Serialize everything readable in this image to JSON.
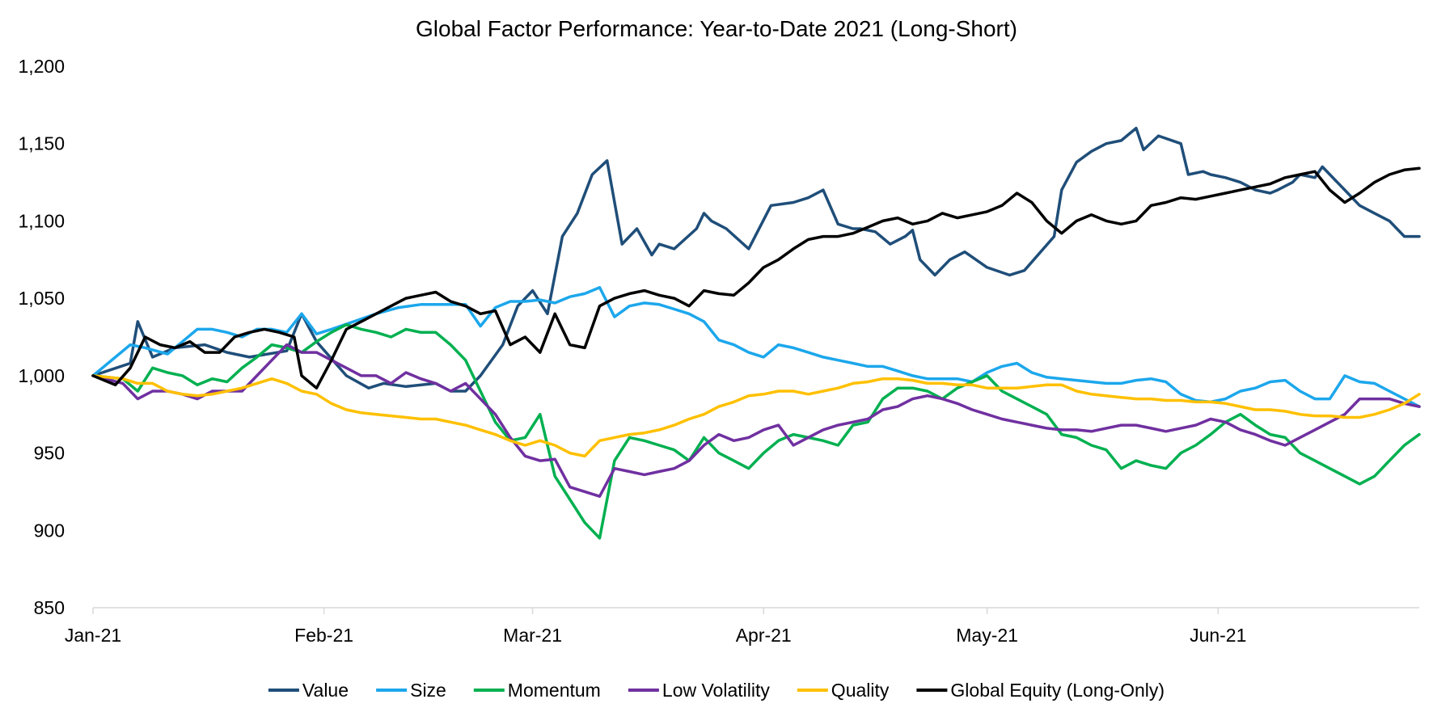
{
  "chart_data": {
    "type": "line",
    "title": "Global Factor Performance: Year-to-Date 2021 (Long-Short)",
    "xlabel": "",
    "ylabel": "",
    "ylim": [
      850,
      1200
    ],
    "yticks": [
      850,
      900,
      950,
      1000,
      1050,
      1100,
      1150,
      1200
    ],
    "ytick_labels": [
      "850",
      "900",
      "950",
      "1,000",
      "1,050",
      "1,100",
      "1,150",
      "1,200"
    ],
    "xlim": [
      0,
      178
    ],
    "xticks": [
      0,
      31,
      59,
      90,
      120,
      151
    ],
    "xtick_labels": [
      "Jan-21",
      "Feb-21",
      "Mar-21",
      "Apr-21",
      "May-21",
      "Jun-21"
    ],
    "grid": false,
    "legend_position": "bottom",
    "series": [
      {
        "name": "Value",
        "color": "#1F4E79",
        "x": [
          0,
          5,
          6,
          8,
          11,
          15,
          18,
          21,
          26,
          28,
          30,
          34,
          37,
          39,
          42,
          46,
          48,
          50,
          52,
          55,
          57,
          59,
          61,
          63,
          65,
          67,
          69,
          71,
          73,
          75,
          76,
          78,
          81,
          82,
          83,
          85,
          88,
          91,
          94,
          96,
          98,
          100,
          102,
          103,
          105,
          107,
          109,
          110,
          111,
          113,
          115,
          117,
          120,
          123,
          125,
          129,
          130,
          132,
          134,
          136,
          138,
          140,
          141,
          143,
          146,
          147,
          149,
          150,
          152,
          154,
          156,
          158,
          159,
          161,
          162,
          164,
          165,
          168,
          170,
          172,
          174,
          176,
          178
        ],
        "values": [
          1000,
          1008,
          1035,
          1012,
          1018,
          1020,
          1015,
          1012,
          1016,
          1040,
          1022,
          1000,
          992,
          995,
          993,
          995,
          990,
          990,
          1000,
          1020,
          1045,
          1055,
          1040,
          1090,
          1105,
          1130,
          1139,
          1085,
          1095,
          1078,
          1085,
          1082,
          1095,
          1105,
          1100,
          1095,
          1082,
          1110,
          1112,
          1115,
          1120,
          1098,
          1095,
          1095,
          1093,
          1085,
          1090,
          1094,
          1075,
          1065,
          1075,
          1080,
          1070,
          1065,
          1068,
          1090,
          1120,
          1138,
          1145,
          1150,
          1152,
          1160,
          1146,
          1155,
          1150,
          1130,
          1132,
          1130,
          1128,
          1125,
          1120,
          1118,
          1120,
          1125,
          1130,
          1128,
          1135,
          1120,
          1110,
          1105,
          1100,
          1090,
          1090
        ]
      },
      {
        "name": "Size",
        "color": "#1CA7EC",
        "x": [
          0,
          5,
          7,
          10,
          12,
          14,
          16,
          18,
          20,
          22,
          24,
          26,
          28,
          30,
          32,
          35,
          38,
          41,
          44,
          47,
          50,
          52,
          54,
          56,
          58,
          60,
          62,
          64,
          66,
          68,
          70,
          72,
          74,
          76,
          78,
          80,
          82,
          84,
          86,
          88,
          90,
          92,
          94,
          96,
          98,
          100,
          102,
          104,
          106,
          108,
          110,
          112,
          114,
          116,
          118,
          120,
          122,
          124,
          126,
          128,
          130,
          132,
          134,
          136,
          138,
          140,
          142,
          144,
          146,
          148,
          150,
          152,
          154,
          156,
          158,
          160,
          162,
          164,
          166,
          168,
          170,
          172,
          174,
          176,
          178
        ],
        "values": [
          1000,
          1020,
          1018,
          1014,
          1022,
          1030,
          1030,
          1028,
          1025,
          1030,
          1030,
          1028,
          1040,
          1027,
          1030,
          1035,
          1040,
          1044,
          1046,
          1046,
          1046,
          1032,
          1044,
          1048,
          1048,
          1049,
          1047,
          1051,
          1053,
          1057,
          1038,
          1045,
          1047,
          1046,
          1043,
          1040,
          1035,
          1023,
          1020,
          1015,
          1012,
          1020,
          1018,
          1015,
          1012,
          1010,
          1008,
          1006,
          1006,
          1003,
          1000,
          998,
          998,
          998,
          996,
          1002,
          1006,
          1008,
          1002,
          999,
          998,
          997,
          996,
          995,
          995,
          997,
          998,
          996,
          988,
          984,
          983,
          985,
          990,
          992,
          996,
          997,
          990,
          985,
          985,
          1000,
          996,
          995,
          990,
          985,
          980
        ]
      },
      {
        "name": "Momentum",
        "color": "#00B050",
        "x": [
          0,
          4,
          6,
          8,
          10,
          12,
          14,
          16,
          18,
          20,
          22,
          24,
          26,
          28,
          30,
          32,
          34,
          36,
          38,
          40,
          42,
          44,
          46,
          48,
          50,
          52,
          54,
          56,
          58,
          60,
          62,
          64,
          66,
          68,
          70,
          72,
          74,
          76,
          78,
          80,
          82,
          84,
          86,
          88,
          90,
          92,
          94,
          96,
          98,
          100,
          102,
          104,
          106,
          108,
          110,
          112,
          114,
          116,
          118,
          120,
          122,
          124,
          126,
          128,
          130,
          132,
          134,
          136,
          138,
          140,
          142,
          144,
          146,
          148,
          150,
          152,
          154,
          156,
          158,
          160,
          162,
          164,
          166,
          168,
          170,
          172,
          174,
          176,
          178
        ],
        "values": [
          1000,
          998,
          990,
          1005,
          1002,
          1000,
          994,
          998,
          996,
          1005,
          1012,
          1020,
          1018,
          1015,
          1022,
          1028,
          1033,
          1030,
          1028,
          1025,
          1030,
          1028,
          1028,
          1020,
          1010,
          990,
          970,
          958,
          960,
          975,
          935,
          920,
          905,
          895,
          945,
          960,
          958,
          955,
          952,
          945,
          960,
          950,
          945,
          940,
          950,
          958,
          962,
          960,
          958,
          955,
          968,
          970,
          985,
          992,
          992,
          990,
          985,
          992,
          996,
          1000,
          990,
          985,
          980,
          975,
          962,
          960,
          955,
          952,
          940,
          945,
          942,
          940,
          950,
          955,
          962,
          970,
          975,
          968,
          962,
          960,
          950,
          945,
          940,
          935,
          930,
          935,
          945,
          955,
          962
        ]
      },
      {
        "name": "Low Volatility",
        "color": "#7030A0",
        "x": [
          0,
          4,
          6,
          8,
          10,
          12,
          14,
          16,
          18,
          20,
          22,
          24,
          26,
          28,
          30,
          32,
          34,
          36,
          38,
          40,
          42,
          44,
          46,
          48,
          50,
          52,
          54,
          56,
          58,
          60,
          62,
          64,
          66,
          68,
          70,
          72,
          74,
          76,
          78,
          80,
          82,
          84,
          86,
          88,
          90,
          92,
          94,
          96,
          98,
          100,
          102,
          104,
          106,
          108,
          110,
          112,
          114,
          116,
          118,
          120,
          122,
          124,
          126,
          128,
          130,
          132,
          134,
          136,
          138,
          140,
          142,
          144,
          146,
          148,
          150,
          152,
          154,
          156,
          158,
          160,
          162,
          164,
          166,
          168,
          170,
          172,
          174,
          176,
          178
        ],
        "values": [
          1000,
          995,
          985,
          990,
          990,
          988,
          985,
          990,
          990,
          990,
          1000,
          1010,
          1020,
          1015,
          1015,
          1010,
          1005,
          1000,
          1000,
          995,
          1002,
          998,
          995,
          990,
          995,
          985,
          975,
          960,
          948,
          945,
          946,
          928,
          925,
          922,
          940,
          938,
          936,
          938,
          940,
          945,
          955,
          962,
          958,
          960,
          965,
          968,
          955,
          960,
          965,
          968,
          970,
          972,
          978,
          980,
          985,
          987,
          985,
          982,
          978,
          975,
          972,
          970,
          968,
          966,
          965,
          965,
          964,
          966,
          968,
          968,
          966,
          964,
          966,
          968,
          972,
          970,
          965,
          962,
          958,
          955,
          960,
          965,
          970,
          975,
          985,
          985,
          985,
          982,
          980
        ]
      },
      {
        "name": "Quality",
        "color": "#FFC000",
        "x": [
          0,
          4,
          6,
          8,
          10,
          12,
          14,
          16,
          18,
          20,
          22,
          24,
          26,
          28,
          30,
          32,
          34,
          36,
          38,
          40,
          42,
          44,
          46,
          48,
          50,
          52,
          54,
          56,
          58,
          60,
          62,
          64,
          66,
          68,
          70,
          72,
          74,
          76,
          78,
          80,
          82,
          84,
          86,
          88,
          90,
          92,
          94,
          96,
          98,
          100,
          102,
          104,
          106,
          108,
          110,
          112,
          114,
          116,
          118,
          120,
          122,
          124,
          126,
          128,
          130,
          132,
          134,
          136,
          138,
          140,
          142,
          144,
          146,
          148,
          150,
          152,
          154,
          156,
          158,
          160,
          162,
          164,
          166,
          168,
          170,
          172,
          174,
          176,
          178
        ],
        "values": [
          1000,
          998,
          995,
          995,
          990,
          988,
          987,
          988,
          990,
          992,
          995,
          998,
          995,
          990,
          988,
          982,
          978,
          976,
          975,
          974,
          973,
          972,
          972,
          970,
          968,
          965,
          962,
          958,
          955,
          958,
          955,
          950,
          948,
          958,
          960,
          962,
          963,
          965,
          968,
          972,
          975,
          980,
          983,
          987,
          988,
          990,
          990,
          988,
          990,
          992,
          995,
          996,
          998,
          998,
          997,
          995,
          995,
          994,
          994,
          992,
          992,
          992,
          993,
          994,
          994,
          990,
          988,
          987,
          986,
          985,
          985,
          984,
          984,
          983,
          983,
          982,
          980,
          978,
          978,
          977,
          975,
          974,
          974,
          973,
          973,
          975,
          978,
          982,
          988
        ]
      },
      {
        "name": "Global Equity (Long-Only)",
        "color": "#000000",
        "x": [
          0,
          3,
          5,
          7,
          9,
          11,
          13,
          15,
          17,
          19,
          21,
          23,
          25,
          27,
          28,
          30,
          32,
          34,
          36,
          38,
          40,
          42,
          44,
          46,
          48,
          50,
          52,
          54,
          56,
          58,
          60,
          62,
          64,
          66,
          68,
          70,
          72,
          74,
          76,
          78,
          80,
          82,
          84,
          86,
          88,
          90,
          92,
          94,
          96,
          98,
          100,
          102,
          104,
          106,
          108,
          110,
          112,
          114,
          116,
          118,
          120,
          122,
          124,
          126,
          128,
          130,
          132,
          134,
          136,
          138,
          140,
          142,
          144,
          146,
          148,
          150,
          152,
          154,
          156,
          158,
          160,
          162,
          164,
          166,
          168,
          170,
          172,
          174,
          176,
          178
        ],
        "values": [
          1000,
          994,
          1005,
          1025,
          1020,
          1018,
          1022,
          1015,
          1015,
          1025,
          1028,
          1030,
          1028,
          1025,
          1000,
          992,
          1010,
          1030,
          1035,
          1040,
          1045,
          1050,
          1052,
          1054,
          1048,
          1045,
          1040,
          1042,
          1020,
          1025,
          1015,
          1040,
          1020,
          1018,
          1045,
          1050,
          1053,
          1055,
          1052,
          1050,
          1045,
          1055,
          1053,
          1052,
          1060,
          1070,
          1075,
          1082,
          1088,
          1090,
          1090,
          1092,
          1096,
          1100,
          1102,
          1098,
          1100,
          1105,
          1102,
          1104,
          1106,
          1110,
          1118,
          1112,
          1100,
          1092,
          1100,
          1104,
          1100,
          1098,
          1100,
          1110,
          1112,
          1115,
          1114,
          1116,
          1118,
          1120,
          1122,
          1124,
          1128,
          1130,
          1132,
          1120,
          1112,
          1118,
          1125,
          1130,
          1133,
          1134
        ]
      }
    ]
  }
}
